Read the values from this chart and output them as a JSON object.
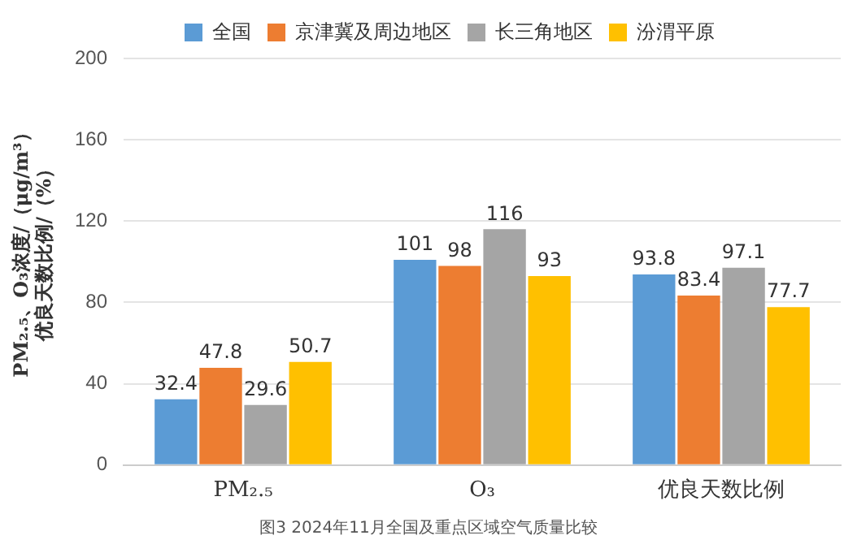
{
  "chart_data": {
    "type": "bar",
    "categories": [
      "PM₂.₅",
      "O₃",
      "优良天数比例"
    ],
    "series": [
      {
        "name": "全国",
        "color": "#5b9bd5",
        "values": [
          32.4,
          101,
          93.8
        ]
      },
      {
        "name": "京津冀及周边地区",
        "color": "#ed7d31",
        "values": [
          47.8,
          98,
          83.4
        ]
      },
      {
        "name": "长三角地区",
        "color": "#a5a5a5",
        "values": [
          29.6,
          116,
          97.1
        ]
      },
      {
        "name": "汾渭平原",
        "color": "#ffc000",
        "values": [
          50.7,
          93,
          77.7
        ]
      }
    ],
    "ylabel": "PM₂.₅、O₃浓度/（μg/m³）优良天数比例/（%）",
    "ylim": [
      0,
      200
    ],
    "yticks": [
      0,
      40,
      80,
      120,
      160,
      200
    ],
    "grid": "y",
    "legend": "top",
    "data_labels": true,
    "annotations": [
      "图3  2024年11月全国及重点区域空气质量比较"
    ]
  }
}
